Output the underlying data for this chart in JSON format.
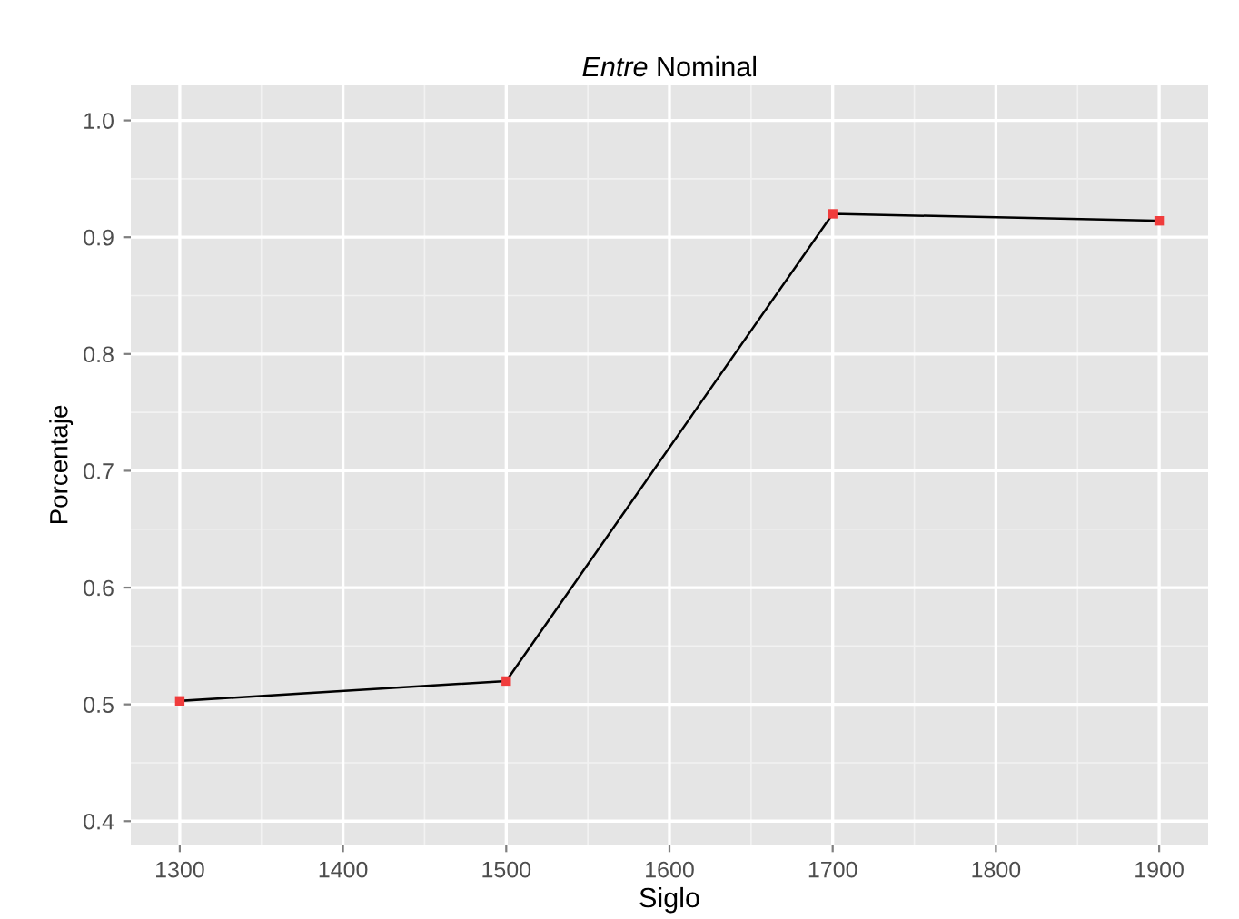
{
  "chart_data": {
    "type": "line",
    "title": "Entre Nominal",
    "xlabel": "Siglo",
    "ylabel": "Porcentaje",
    "x": [
      1300,
      1500,
      1700,
      1900
    ],
    "series": [
      {
        "color": "#000000",
        "values": [
          0.503,
          0.52,
          0.92,
          0.914
        ]
      },
      {
        "type": "scatter",
        "marker": "square",
        "color": "#f03c3c",
        "values": [
          0.503,
          0.52,
          0.92,
          0.914
        ]
      }
    ],
    "xlim": [
      1270,
      1930
    ],
    "ylim": [
      0.38,
      1.03
    ],
    "xticks": [
      1300,
      1400,
      1500,
      1600,
      1700,
      1800,
      1900
    ],
    "yticks": [
      0.4,
      0.5,
      0.6,
      0.7,
      0.8,
      0.9,
      {
        "value": 1.0,
        "label": "1.0"
      }
    ],
    "grid": true
  }
}
